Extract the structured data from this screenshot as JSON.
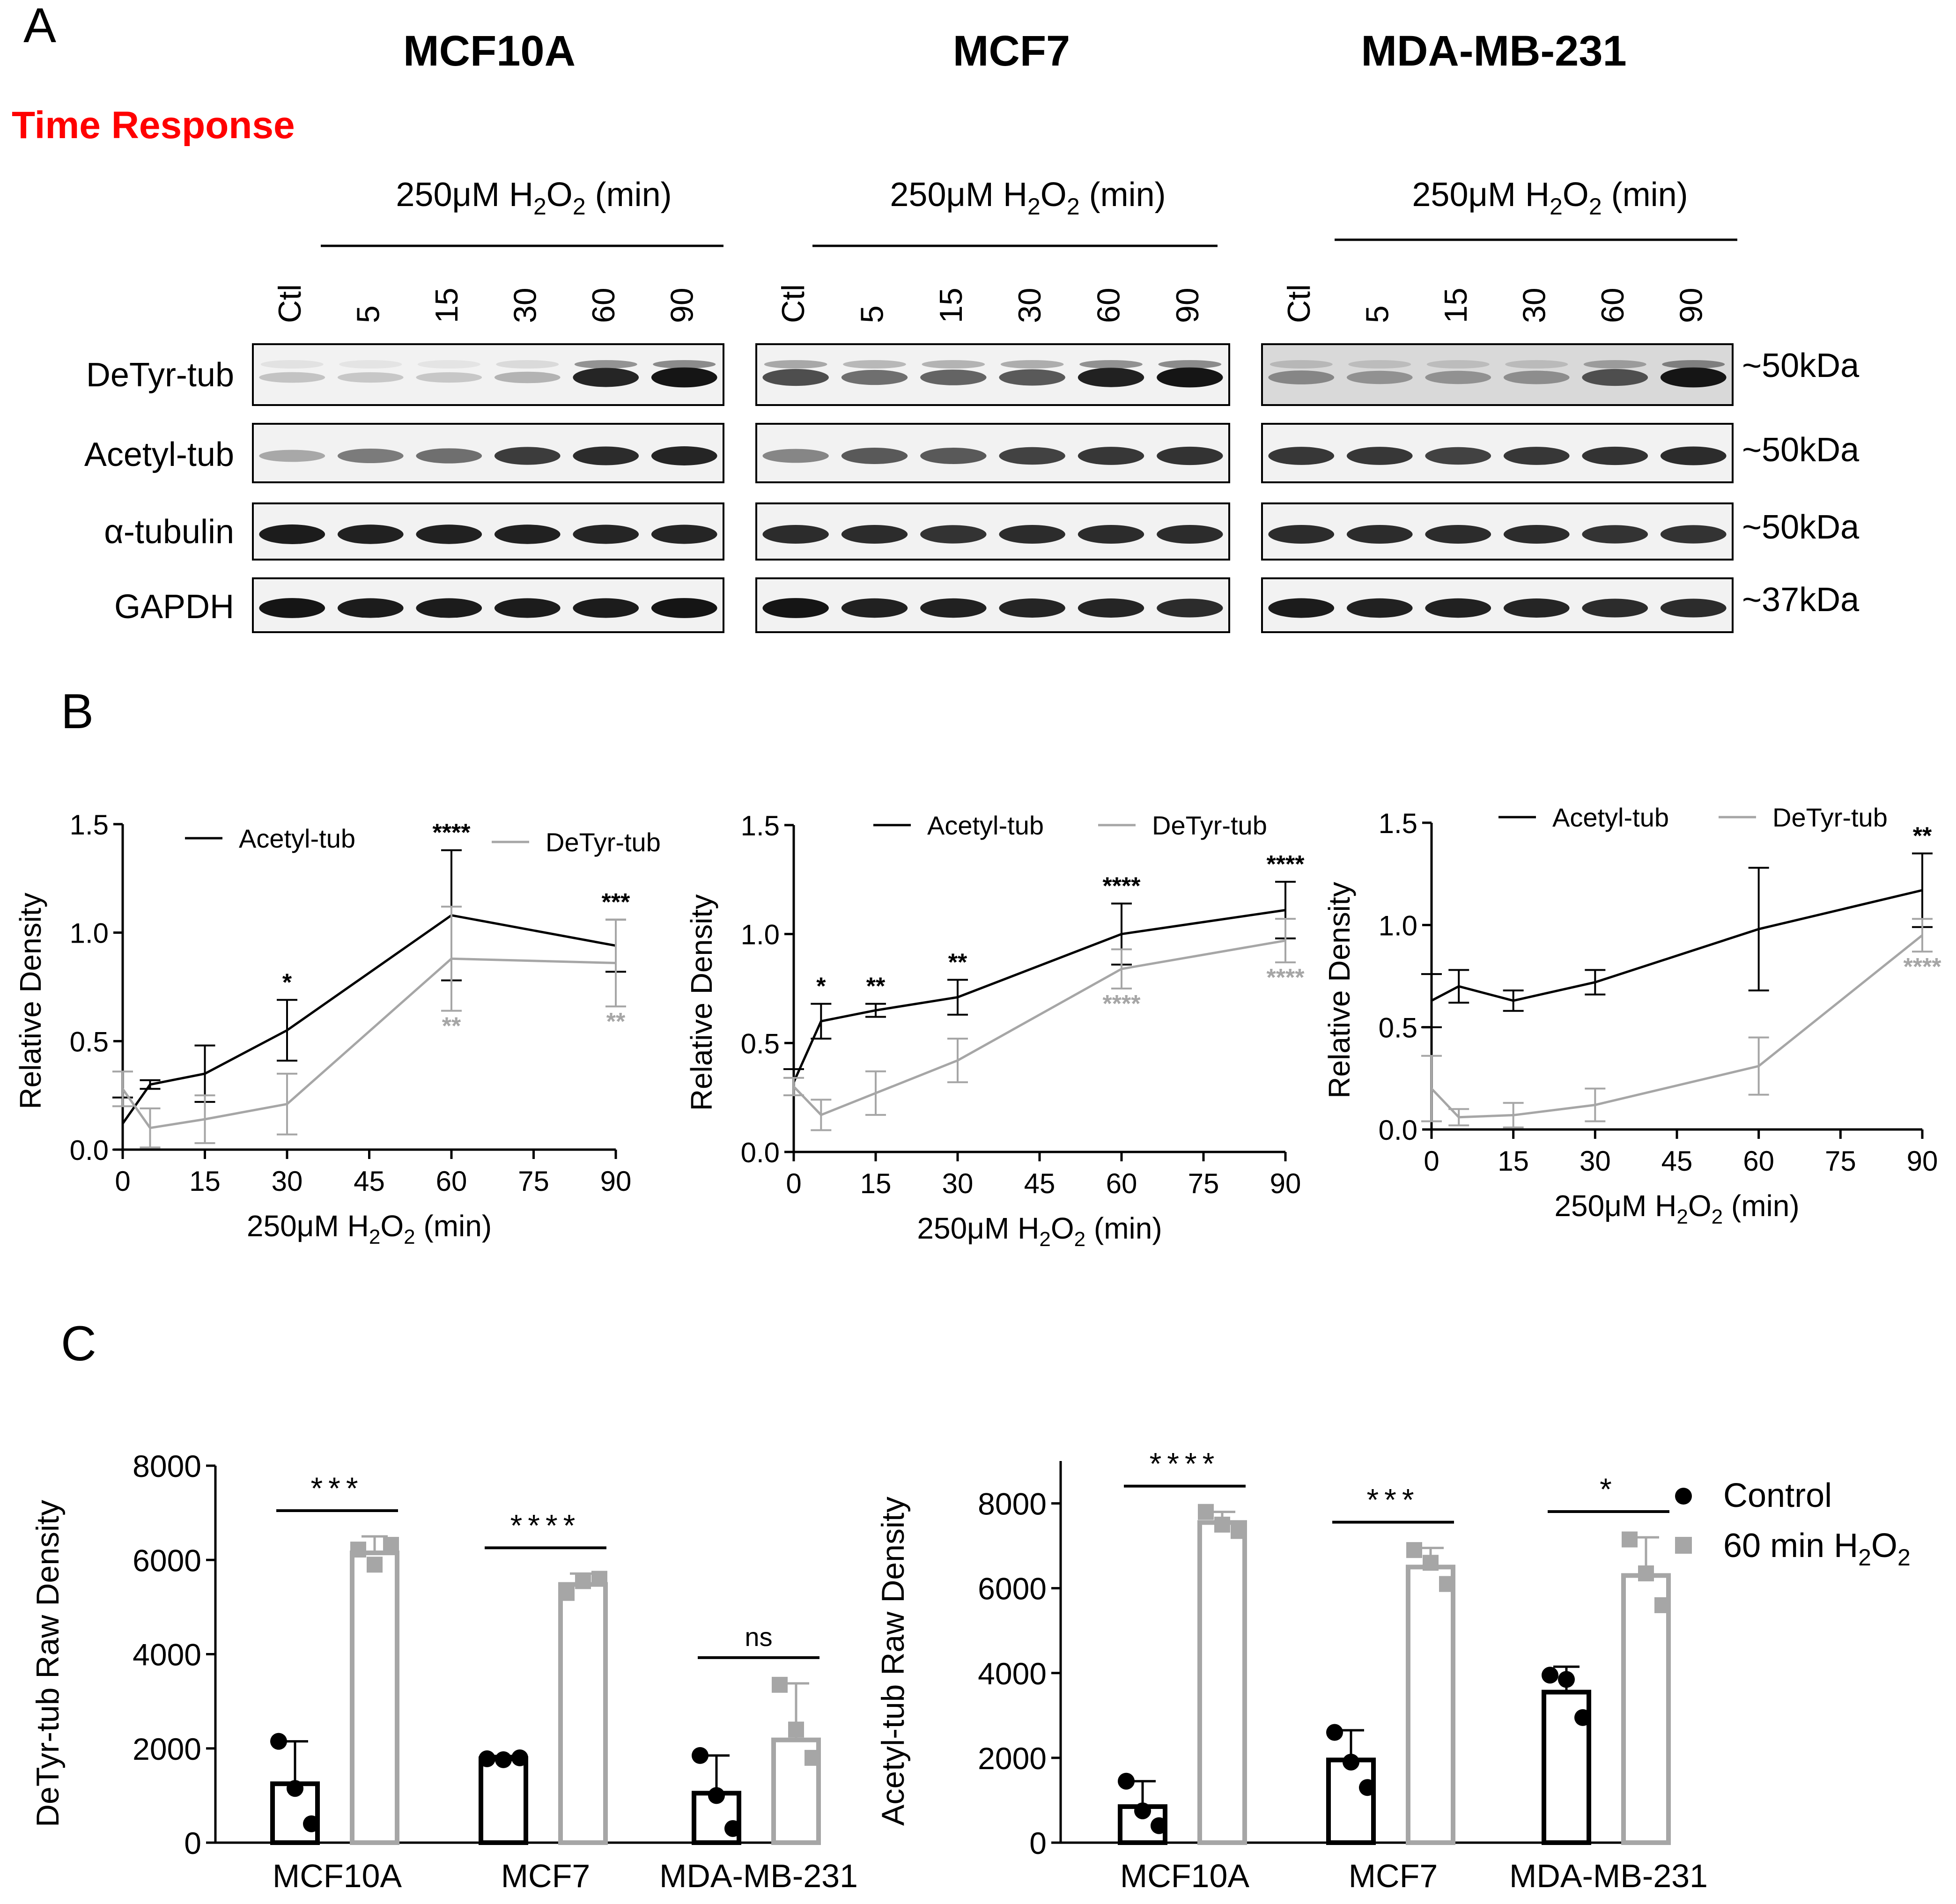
{
  "figure": {
    "panel_labels": [
      "A",
      "B",
      "C"
    ],
    "time_response_label": "Time Response",
    "time_response_color": "#ff0000",
    "treatment_prefix": "250μM H",
    "treatment_sub": "2",
    "treatment_mid": "O",
    "treatment_suffix": " (min)"
  },
  "blots": {
    "cell_lines": [
      "MCF10A",
      "MCF7",
      "MDA-MB-231"
    ],
    "lanes": [
      "Ctl",
      "5",
      "15",
      "30",
      "60",
      "90"
    ],
    "rows": [
      {
        "label": "DeTyr-tub",
        "kda": "~50kDa"
      },
      {
        "label": "Acetyl-tub",
        "kda": "~50kDa"
      },
      {
        "label": "α-tubulin",
        "kda": "~50kDa"
      },
      {
        "label": "GAPDH",
        "kda": "~37kDa"
      }
    ],
    "band_intensity": [
      [
        [
          0.18,
          0.16,
          0.16,
          0.25,
          0.88,
          0.95
        ],
        [
          0.3,
          0.5,
          0.55,
          0.78,
          0.85,
          0.88
        ],
        [
          0.92,
          0.9,
          0.9,
          0.9,
          0.88,
          0.88
        ],
        [
          0.95,
          0.92,
          0.92,
          0.92,
          0.92,
          0.95
        ]
      ],
      [
        [
          0.7,
          0.55,
          0.6,
          0.65,
          0.9,
          0.95
        ],
        [
          0.45,
          0.65,
          0.65,
          0.75,
          0.8,
          0.82
        ],
        [
          0.85,
          0.85,
          0.82,
          0.85,
          0.85,
          0.85
        ],
        [
          0.95,
          0.9,
          0.9,
          0.88,
          0.88,
          0.85
        ]
      ],
      [
        [
          0.45,
          0.4,
          0.4,
          0.42,
          0.7,
          0.95
        ],
        [
          0.8,
          0.8,
          0.75,
          0.8,
          0.82,
          0.85
        ],
        [
          0.85,
          0.85,
          0.85,
          0.85,
          0.82,
          0.82
        ],
        [
          0.92,
          0.9,
          0.9,
          0.88,
          0.85,
          0.85
        ]
      ]
    ]
  },
  "colors": {
    "acetyl": "#000000",
    "detyr": "#a6a6a6",
    "control": "#000000",
    "treated": "#a6a6a6"
  },
  "chart_data": [
    {
      "type": "line",
      "panel": "B",
      "cell_line": "MCF10A",
      "xlabel": "250μM H2O2 (min)",
      "ylabel": "Relative Density",
      "x": [
        0,
        5,
        15,
        30,
        60,
        90
      ],
      "xticks": [
        "0",
        "15",
        "30",
        "45",
        "60",
        "75",
        "90"
      ],
      "yticks": [
        "0.0",
        "0.5",
        "1.0",
        "1.5"
      ],
      "xlim": [
        0,
        90
      ],
      "ylim": [
        0,
        1.5
      ],
      "series": [
        {
          "name": "Acetyl-tub",
          "values": [
            0.12,
            0.3,
            0.35,
            0.55,
            1.08,
            0.94
          ],
          "errors": [
            0.12,
            0.02,
            0.13,
            0.14,
            0.3,
            0.12
          ],
          "sig": [
            "",
            "",
            "",
            "*",
            "****",
            "***"
          ]
        },
        {
          "name": "DeTyr-tub",
          "values": [
            0.28,
            0.1,
            0.14,
            0.21,
            0.88,
            0.86
          ],
          "errors": [
            0.08,
            0.09,
            0.11,
            0.14,
            0.24,
            0.2
          ],
          "sig": [
            "",
            "",
            "",
            "",
            "**",
            "**"
          ]
        }
      ]
    },
    {
      "type": "line",
      "panel": "B",
      "cell_line": "MCF7",
      "xlabel": "250μM H2O2 (min)",
      "ylabel": "Relative Density",
      "x": [
        0,
        5,
        15,
        30,
        60,
        90
      ],
      "xticks": [
        "0",
        "15",
        "30",
        "45",
        "60",
        "75",
        "90"
      ],
      "yticks": [
        "0.0",
        "0.5",
        "1.0",
        "1.5"
      ],
      "xlim": [
        0,
        90
      ],
      "ylim": [
        0,
        1.5
      ],
      "series": [
        {
          "name": "Acetyl-tub",
          "values": [
            0.32,
            0.6,
            0.65,
            0.71,
            1.0,
            1.11
          ],
          "errors": [
            0.06,
            0.08,
            0.03,
            0.08,
            0.14,
            0.13
          ],
          "sig": [
            "",
            "*",
            "**",
            "**",
            "****",
            "****"
          ]
        },
        {
          "name": "DeTyr-tub",
          "values": [
            0.3,
            0.17,
            0.27,
            0.42,
            0.84,
            0.97
          ],
          "errors": [
            0.04,
            0.07,
            0.1,
            0.1,
            0.09,
            0.1
          ],
          "sig": [
            "",
            "",
            "",
            "",
            "****",
            "****"
          ]
        }
      ]
    },
    {
      "type": "line",
      "panel": "B",
      "cell_line": "MDA-MB-231",
      "xlabel": "250μM H2O2 (min)",
      "ylabel": "Relative Density",
      "x": [
        0,
        5,
        15,
        30,
        60,
        90
      ],
      "xticks": [
        "0",
        "15",
        "30",
        "45",
        "60",
        "75",
        "90"
      ],
      "yticks": [
        "0.0",
        "0.5",
        "1.0",
        "1.5"
      ],
      "xlim": [
        0,
        90
      ],
      "ylim": [
        0,
        1.5
      ],
      "series": [
        {
          "name": "Acetyl-tub",
          "values": [
            0.63,
            0.7,
            0.63,
            0.72,
            0.98,
            1.17
          ],
          "errors": [
            0.13,
            0.08,
            0.05,
            0.06,
            0.3,
            0.18
          ],
          "sig": [
            "",
            "",
            "",
            "",
            "",
            "**"
          ]
        },
        {
          "name": "DeTyr-tub",
          "values": [
            0.2,
            0.06,
            0.07,
            0.12,
            0.31,
            0.95
          ],
          "errors": [
            0.16,
            0.04,
            0.06,
            0.08,
            0.14,
            0.08
          ],
          "sig": [
            "",
            "",
            "",
            "",
            "",
            "****"
          ]
        }
      ]
    },
    {
      "type": "bar",
      "panel": "C",
      "ylabel": "DeTyr-tub Raw Density",
      "categories": [
        "MCF10A",
        "MCF7",
        "MDA-MB-231"
      ],
      "yticks": [
        "0",
        "2000",
        "4000",
        "6000",
        "8000"
      ],
      "ylim": [
        0,
        8000
      ],
      "series": [
        {
          "name": "Control",
          "values": [
            1250,
            1780,
            1050
          ],
          "errors": [
            900,
            60,
            800
          ],
          "points": [
            [
              2150,
              1150,
              400
            ],
            [
              1780,
              1760,
              1800
            ],
            [
              1850,
              1000,
              300
            ]
          ]
        },
        {
          "name": "60 min H2O2",
          "values": [
            6150,
            5480,
            2180
          ],
          "errors": [
            350,
            230,
            1200
          ],
          "points": [
            [
              6220,
              5900,
              6320
            ],
            [
              5300,
              5550,
              5600
            ],
            [
              3350,
              2400,
              1800
            ]
          ]
        }
      ],
      "significance": [
        "***",
        "****",
        "ns"
      ]
    },
    {
      "type": "bar",
      "panel": "C",
      "ylabel": "Acetyl-tub Raw Density",
      "categories": [
        "MCF10A",
        "MCF7",
        "MDA-MB-231"
      ],
      "yticks": [
        "0",
        "2000",
        "4000",
        "6000",
        "8000"
      ],
      "ylim": [
        0,
        9000
      ],
      "series": [
        {
          "name": "Control",
          "values": [
            850,
            1950,
            3550
          ],
          "errors": [
            600,
            700,
            600
          ],
          "points": [
            [
              1450,
              750,
              400
            ],
            [
              2600,
              1900,
              1300
            ],
            [
              3950,
              3850,
              2950
            ]
          ]
        },
        {
          "name": "60 min H2O2",
          "values": [
            7550,
            6500,
            6300
          ],
          "errors": [
            250,
            450,
            900
          ],
          "points": [
            [
              7800,
              7500,
              7350
            ],
            [
              6900,
              6600,
              6100
            ],
            [
              7150,
              6350,
              5600
            ]
          ]
        }
      ],
      "significance": [
        "****",
        "***",
        "*"
      ]
    }
  ],
  "legend_c": {
    "control_label": "Control",
    "treated_prefix": "60 min H",
    "treated_sub": "2",
    "treated_mid": "O",
    "treated_sub2": "2"
  }
}
